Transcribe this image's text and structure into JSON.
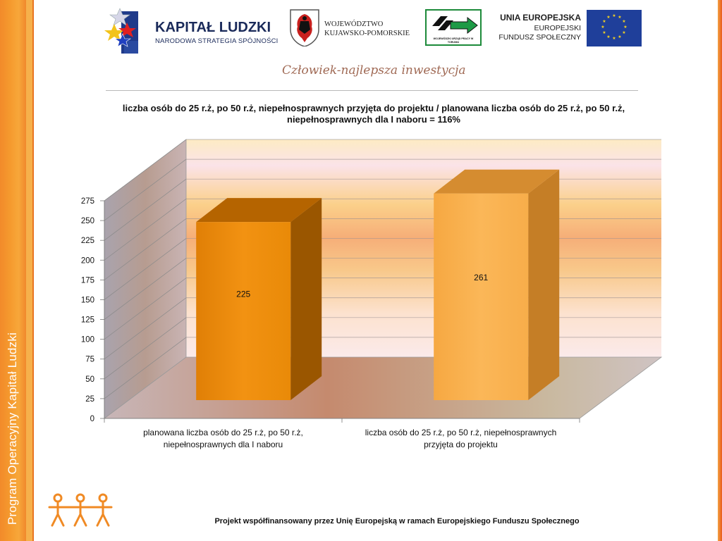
{
  "header": {
    "kapital_logo": {
      "title": "KAPITAŁ LUDZKI",
      "subtitle": "NARODOWA STRATEGIA SPÓJNOŚCI"
    },
    "wojewodztwo_logo": {
      "line1": "WOJEWÓDZTWO",
      "line2": "KUJAWSKO-POMORSKIE"
    },
    "wup_logo": {
      "text": "WOJEWÓDZKI URZĄD PRACY W TORUNIU"
    },
    "eu_logo": {
      "line1": "UNIA EUROPEJSKA",
      "line2": "EUROPEJSKI",
      "line3": "FUNDUSZ SPOŁECZNY"
    },
    "slogan": "Człowiek-najlepsza inwestycja"
  },
  "side_band_text": "Program Operacyjny Kapitał Ludzki",
  "chart_data": {
    "type": "bar",
    "title": "liczba osób do 25 r.ż, po 50 r.ż, niepełnosprawnych przyjęta do projektu / planowana liczba osób do 25 r.ż, po 50 r.ż, niepełnosprawnych dla I naboru = 116%",
    "categories": [
      "planowana liczba osób do 25 r.ż, po 50 r.ż, niepełnosprawnych dla I naboru",
      "liczba osób do 25 r.ż, po 50 r.ż, niepełnosprawnych przyjęta do projektu"
    ],
    "category_lines": [
      [
        "planowana liczba osób do 25 r.ż, po 50 r.ż,",
        "niepełnosprawnych dla I naboru"
      ],
      [
        "liczba osób do 25 r.ż, po 50 r.ż, niepełnosprawnych",
        "przyjęta do projektu"
      ]
    ],
    "values": [
      225,
      261
    ],
    "data_labels": [
      "225",
      "261"
    ],
    "ylim": [
      0,
      275
    ],
    "yticks": [
      0,
      25,
      50,
      75,
      100,
      125,
      150,
      175,
      200,
      225,
      250,
      275
    ],
    "xlabel": "",
    "ylabel": "",
    "grid": true,
    "legend": "none",
    "colors": [
      "#ee8a0a",
      "#f8b050"
    ]
  },
  "footer": "Projekt współfinansowany przez Unię Europejską w ramach Europejskiego Funduszu Społecznego"
}
